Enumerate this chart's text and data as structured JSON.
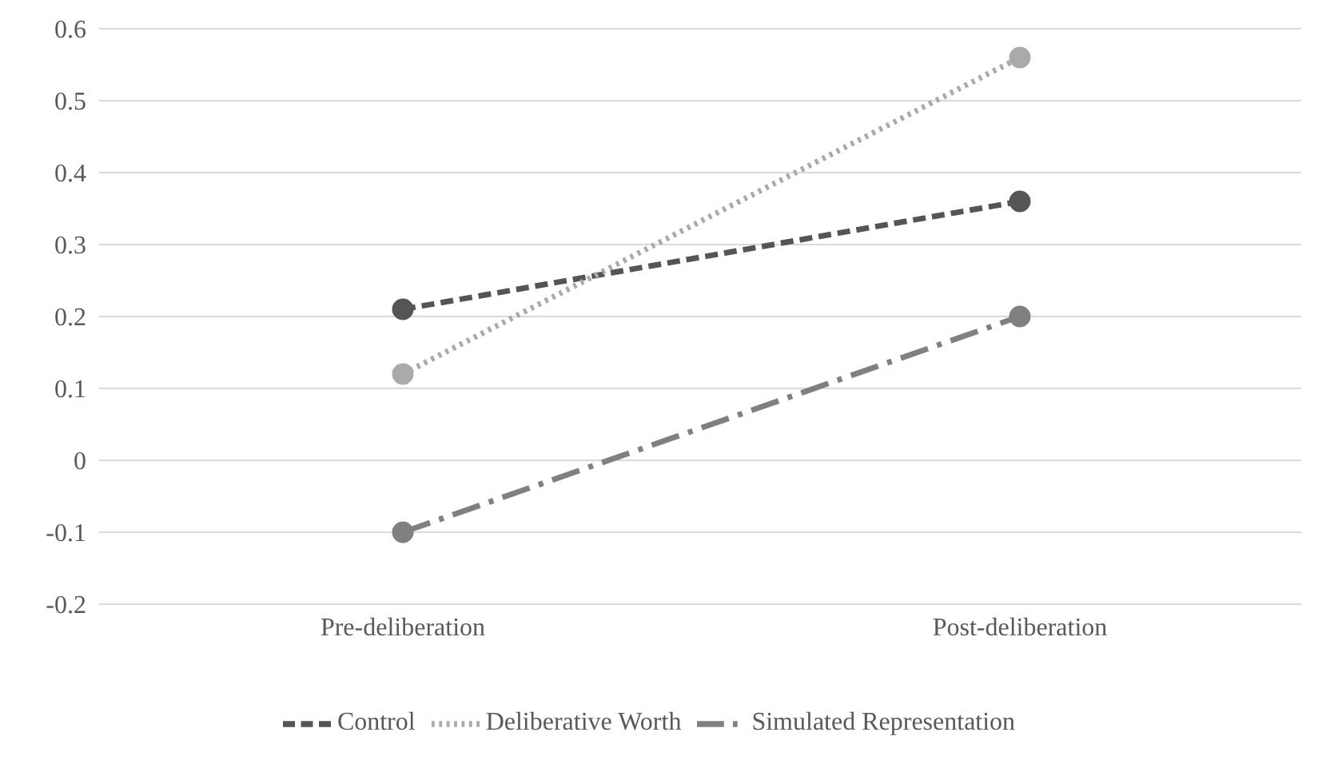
{
  "chart_data": {
    "type": "line",
    "categories": [
      "Pre-deliberation",
      "Post-deliberation"
    ],
    "series": [
      {
        "name": "Control",
        "color": "#555555",
        "values": [
          0.21,
          0.36
        ],
        "line_style": "dashed"
      },
      {
        "name": "Deliberative Worth",
        "color": "#aaaaaa",
        "values": [
          0.12,
          0.56
        ],
        "line_style": "dotted"
      },
      {
        "name": "Simulated Representation",
        "color": "#808080",
        "values": [
          -0.1,
          0.2
        ],
        "line_style": "dashed"
      }
    ],
    "ylim": [
      -0.2,
      0.6
    ],
    "yticks": [
      -0.2,
      -0.1,
      0,
      0.1,
      0.2,
      0.3,
      0.4,
      0.5,
      0.6
    ],
    "grid": "y",
    "legend": "bottom",
    "marker": "circle"
  }
}
